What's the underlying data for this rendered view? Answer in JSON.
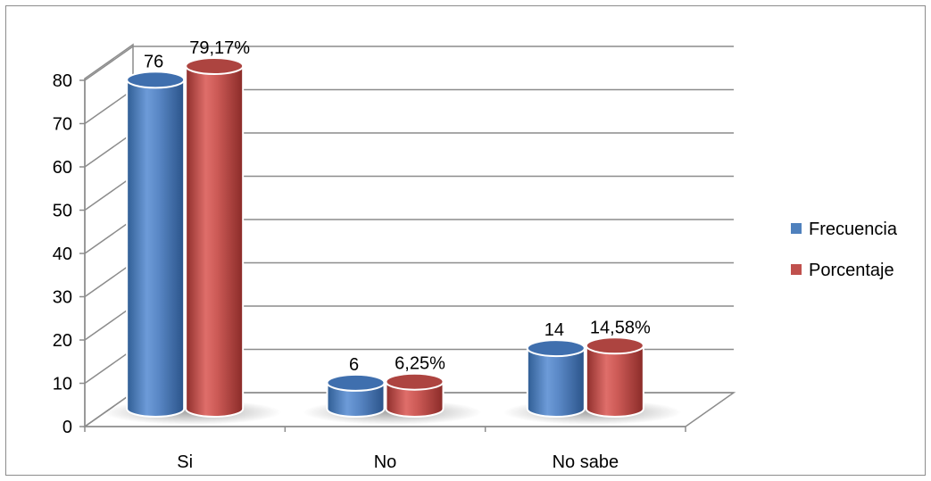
{
  "chart_data": {
    "type": "bar",
    "style": "3d-cylinder",
    "categories": [
      "Si",
      "No",
      "No sabe"
    ],
    "series": [
      {
        "name": "Frecuencia",
        "values": [
          76,
          6,
          14
        ],
        "labels": [
          "76",
          "6",
          "14"
        ],
        "color": "#4f81bd"
      },
      {
        "name": "Porcentaje",
        "values": [
          79.17,
          6.25,
          14.58
        ],
        "labels": [
          "79,17%",
          "6,25%",
          "14,58%"
        ],
        "color": "#c0504d"
      }
    ],
    "yticks": [
      "0",
      "10",
      "20",
      "30",
      "40",
      "50",
      "60",
      "70",
      "80"
    ],
    "ylim": [
      0,
      80
    ],
    "grid": true,
    "legend_position": "right"
  }
}
